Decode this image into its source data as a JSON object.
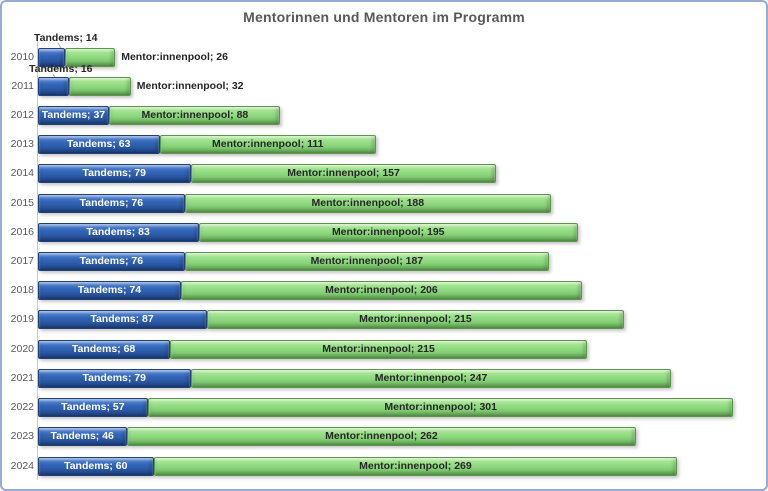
{
  "chart_data": {
    "type": "bar",
    "orientation": "horizontal",
    "stacked": true,
    "title": "Mentorinnen und Mentoren im Programm",
    "categories": [
      "2010",
      "2011",
      "2012",
      "2013",
      "2014",
      "2015",
      "2016",
      "2017",
      "2018",
      "2019",
      "2020",
      "2021",
      "2022",
      "2023",
      "2024"
    ],
    "series": [
      {
        "name": "Tandems",
        "color": "#3265B8",
        "label_text_color": "#FFFFFF",
        "values": [
          14,
          16,
          37,
          63,
          79,
          76,
          83,
          76,
          74,
          87,
          68,
          79,
          57,
          46,
          60
        ]
      },
      {
        "name": "Mentor:innenpool",
        "color": "#90DA81",
        "label_text_color": "#262626",
        "values": [
          26,
          32,
          88,
          111,
          157,
          188,
          195,
          187,
          206,
          215,
          215,
          247,
          301,
          262,
          269
        ]
      }
    ],
    "data_labels": {
      "format": "{series}; {value}",
      "separator": "; "
    },
    "xlim": [
      0,
      370
    ],
    "value_axis_visible": false,
    "gridlines": false,
    "legend_position": "none",
    "title_color": "#595959",
    "category_label_color": "#595959",
    "axis_line_color": "#B8CCE4",
    "leader_line_color": "#A6A6A6"
  }
}
